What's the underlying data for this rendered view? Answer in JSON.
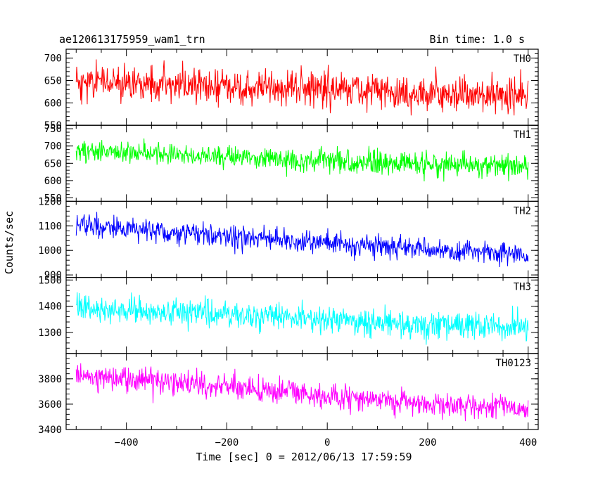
{
  "header": {
    "title": "ae120613175959_wam1_trn",
    "bin_time": "Bin time: 1.0 s"
  },
  "chart_data": {
    "type": "line",
    "title": "ae120613175959_wam1_trn",
    "xlabel": "Time [sec] 0 = 2012/06/13 17:59:59",
    "ylabel": "Counts/sec",
    "xlim": [
      -520,
      420
    ],
    "x_start": -500,
    "x_end": 400,
    "x_ticks": [
      -400,
      -200,
      0,
      200,
      400
    ],
    "x_tick_labels": [
      "−400",
      "−200",
      "0",
      "200",
      "400"
    ],
    "panels": [
      {
        "name": "TH0",
        "color": "#ff0000",
        "ylim": [
          550,
          720
        ],
        "yticks": [
          550,
          600,
          650,
          700
        ],
        "ytick_labels": [
          "550",
          "600",
          "650",
          "700"
        ],
        "trend": [
          [
            -500,
            648
          ],
          [
            -300,
            640
          ],
          [
            0,
            628
          ],
          [
            400,
            612
          ]
        ],
        "noise_sd": 28
      },
      {
        "name": "TH1",
        "color": "#00ff00",
        "ylim": [
          540,
          760
        ],
        "yticks": [
          550,
          600,
          650,
          700,
          750
        ],
        "ytick_labels": [
          "550",
          "600",
          "650",
          "700",
          "750"
        ],
        "trend": [
          [
            -500,
            682
          ],
          [
            -200,
            672
          ],
          [
            0,
            655
          ],
          [
            400,
            642
          ]
        ],
        "noise_sd": 24
      },
      {
        "name": "TH2",
        "color": "#0000ff",
        "ylim": [
          890,
          1200
        ],
        "yticks": [
          900,
          1000,
          1100,
          1200
        ],
        "ytick_labels": [
          "900",
          "1000",
          "1100",
          "1200"
        ],
        "trend": [
          [
            -500,
            1105
          ],
          [
            -300,
            1075
          ],
          [
            0,
            1030
          ],
          [
            400,
            980
          ]
        ],
        "noise_sd": 32
      },
      {
        "name": "TH3",
        "color": "#00ffff",
        "ylim": [
          1220,
          1510
        ],
        "yticks": [
          1300,
          1400,
          1500
        ],
        "ytick_labels": [
          "1300",
          "1400",
          "1500"
        ],
        "trend": [
          [
            -500,
            1395
          ],
          [
            -200,
            1370
          ],
          [
            0,
            1345
          ],
          [
            400,
            1320
          ]
        ],
        "noise_sd": 38
      },
      {
        "name": "TH0123",
        "color": "#ff00ff",
        "ylim": [
          3400,
          4000
        ],
        "yticks": [
          3400,
          3600,
          3800
        ],
        "ytick_labels": [
          "3400",
          "3600",
          "3800"
        ],
        "trend": [
          [
            -500,
            3820
          ],
          [
            -200,
            3740
          ],
          [
            0,
            3660
          ],
          [
            400,
            3560
          ]
        ],
        "noise_sd": 70
      }
    ]
  }
}
